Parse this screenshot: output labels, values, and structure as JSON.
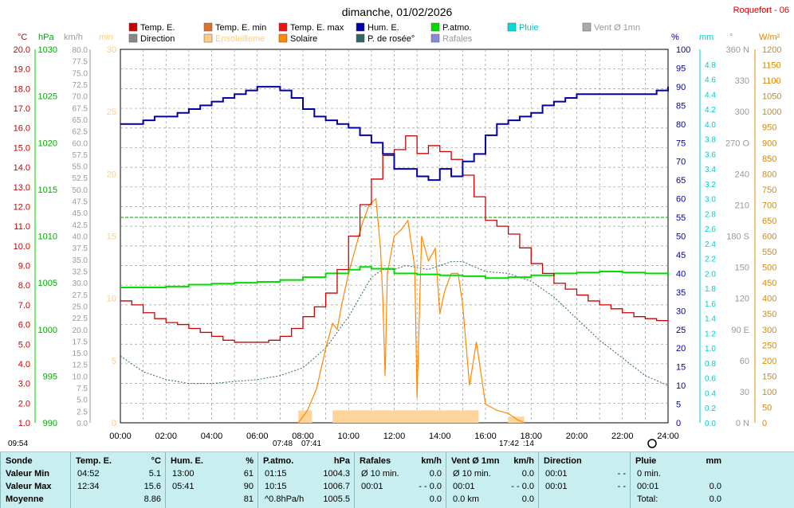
{
  "title": "dimanche, 01/02/2026",
  "station": "Roquefort - 06",
  "legend": [
    {
      "label": "Temp. E.",
      "color": "#cc0000"
    },
    {
      "label": "Temp. E. min",
      "color": "#e07030"
    },
    {
      "label": "Temp. E. max",
      "color": "#ee1111"
    },
    {
      "label": "Hum. E.",
      "color": "#0000aa"
    },
    {
      "label": "P.atmo.",
      "color": "#00dd00"
    },
    {
      "label": "Pluie",
      "color": "#00dddd"
    },
    {
      "label": "Vent Ø 1mn",
      "color": "#aaaaaa"
    },
    {
      "label": "Direction",
      "color": "#888888"
    },
    {
      "label": "Ensoleilleme",
      "color": "#ffcc88"
    },
    {
      "label": "Solaire",
      "color": "#ff8800"
    },
    {
      "label": "P. de rosée°",
      "color": "#336666"
    },
    {
      "label": "Rafales",
      "color": "#8888dd"
    }
  ],
  "axis_units": {
    "temp": "°C",
    "press": "hPa",
    "wind": "km/h",
    "min": "min",
    "hum": "%",
    "rain": "mm",
    "dir": "°",
    "solar": "W/m²"
  },
  "time_labels": [
    "00:00",
    "02:00",
    "04:00",
    "06:00",
    "08:00",
    "10:00",
    "12:00",
    "14:00",
    "16:00",
    "18:00",
    "20:00",
    "22:00",
    "24:00"
  ],
  "sun_marks": {
    "left": "09:54",
    "sunrise": "07:48",
    "sunrise2": "07:41",
    "sunset": "17:42",
    "sunset2": ":14"
  },
  "chart_data": {
    "type": "line",
    "x_unit": "hours",
    "xlim": [
      0,
      24
    ],
    "series": [
      {
        "name": "Temp. E.",
        "unit": "°C",
        "ylim": [
          1,
          20
        ],
        "color": "#cc0000",
        "x": [
          0,
          0.5,
          1,
          1.5,
          2,
          2.5,
          3,
          3.5,
          4,
          4.5,
          5,
          5.5,
          6,
          6.5,
          7,
          7.5,
          8,
          8.5,
          9,
          9.5,
          10,
          10.5,
          11,
          11.5,
          12,
          12.5,
          13,
          13.5,
          14,
          14.5,
          15,
          15.5,
          16,
          16.5,
          17,
          17.5,
          18,
          18.5,
          19,
          19.5,
          20,
          20.5,
          21,
          21.5,
          22,
          22.5,
          23,
          23.5,
          24
        ],
        "y": [
          7.2,
          7.0,
          6.6,
          6.3,
          6.1,
          6.0,
          5.8,
          5.6,
          5.4,
          5.2,
          5.1,
          5.1,
          5.1,
          5.2,
          5.4,
          5.8,
          6.4,
          6.9,
          7.6,
          8.8,
          10.5,
          12.1,
          13.4,
          14.6,
          14.9,
          15.6,
          14.7,
          15.1,
          14.8,
          14.4,
          13.6,
          12.5,
          11.3,
          11.0,
          10.6,
          9.9,
          9.1,
          8.6,
          8.1,
          7.8,
          7.5,
          7.2,
          7.0,
          6.8,
          6.6,
          6.4,
          6.3,
          6.2,
          6.1
        ]
      },
      {
        "name": "Hum. E.",
        "unit": "%",
        "ylim": [
          0,
          100
        ],
        "color": "#0000aa",
        "x": [
          0,
          0.5,
          1,
          1.5,
          2,
          2.5,
          3,
          3.5,
          4,
          4.5,
          5,
          5.5,
          6,
          6.5,
          7,
          7.5,
          8,
          8.5,
          9,
          9.5,
          10,
          10.5,
          11,
          11.5,
          12,
          12.5,
          13,
          13.5,
          14,
          14.5,
          15,
          15.5,
          16,
          16.5,
          17,
          17.5,
          18,
          18.5,
          19,
          19.5,
          20,
          20.5,
          21,
          21.5,
          22,
          22.5,
          23,
          23.5,
          24
        ],
        "y": [
          80,
          80,
          81,
          82,
          82,
          83,
          84,
          85,
          86,
          87,
          88,
          89,
          90,
          90,
          89,
          87,
          84,
          82,
          81,
          80,
          79,
          77,
          75,
          72,
          68,
          68,
          66,
          65,
          68,
          66,
          70,
          72,
          77,
          80,
          81,
          82,
          83,
          85,
          86,
          87,
          88,
          88,
          88,
          88,
          88,
          88,
          88,
          89,
          90
        ]
      },
      {
        "name": "P.atmo.",
        "unit": "hPa",
        "ylim": [
          990,
          1030
        ],
        "color": "#00dd00",
        "x": [
          0,
          1,
          2,
          3,
          4,
          5,
          6,
          7,
          8,
          9,
          10,
          10.5,
          11,
          12,
          13,
          14,
          15,
          16,
          17,
          18,
          19,
          20,
          21,
          22,
          23,
          24
        ],
        "y": [
          1004.5,
          1004.5,
          1004.6,
          1004.8,
          1004.9,
          1005.0,
          1005.1,
          1005.3,
          1005.6,
          1006.0,
          1006.4,
          1006.7,
          1006.5,
          1006.0,
          1005.9,
          1005.8,
          1005.7,
          1005.5,
          1005.6,
          1005.8,
          1006.0,
          1006.1,
          1006.2,
          1006.1,
          1006.0,
          1005.7
        ]
      },
      {
        "name": "Solaire",
        "unit": "W/m²",
        "ylim": [
          0,
          1200
        ],
        "color": "#ff8800",
        "x": [
          7.8,
          8.2,
          8.6,
          9.0,
          9.3,
          9.5,
          9.7,
          10.0,
          10.3,
          10.6,
          10.9,
          11.2,
          11.4,
          11.5,
          11.6,
          11.7,
          12.0,
          12.3,
          12.6,
          12.9,
          13.0,
          13.2,
          13.5,
          13.8,
          14.0,
          14.2,
          14.5,
          14.8,
          15.0,
          15.3,
          15.6,
          16.0,
          16.5,
          17.0,
          17.4,
          17.7
        ],
        "y": [
          0,
          40,
          110,
          240,
          320,
          300,
          380,
          480,
          560,
          640,
          700,
          720,
          560,
          400,
          150,
          480,
          600,
          620,
          650,
          500,
          80,
          600,
          520,
          560,
          350,
          420,
          480,
          480,
          380,
          120,
          260,
          60,
          40,
          30,
          10,
          0
        ]
      },
      {
        "name": "P. de rosée°",
        "unit": "°C",
        "ylim": [
          1,
          20
        ],
        "color": "#336666",
        "x": [
          0,
          1,
          2,
          3,
          4,
          5,
          6,
          7,
          8,
          9,
          10,
          10.5,
          11,
          11.5,
          12,
          12.5,
          13,
          13.5,
          14,
          14.5,
          15,
          16,
          17,
          18,
          19,
          20,
          21,
          22,
          23,
          24
        ],
        "y": [
          4.4,
          3.6,
          3.2,
          3.0,
          3.0,
          3.1,
          3.2,
          3.4,
          3.8,
          4.8,
          6.4,
          7.4,
          8.4,
          8.8,
          8.8,
          9.0,
          8.9,
          8.8,
          9.0,
          9.2,
          9.2,
          8.7,
          8.6,
          8.2,
          7.4,
          6.3,
          5.2,
          4.3,
          3.4,
          2.9
        ]
      },
      {
        "name": "Ensoleilleme",
        "unit": "min",
        "ylim": [
          0,
          30
        ],
        "color": "#ffcc88",
        "x": [
          7.8,
          8.4,
          9.3,
          15.7,
          17.0,
          17.7
        ],
        "y": [
          0,
          1,
          1,
          1,
          0.5,
          0
        ]
      }
    ]
  },
  "footer": {
    "sections": [
      {
        "title": "Sonde",
        "rows": [
          "Valeur Min",
          "Valeur Max",
          "Moyenne"
        ]
      },
      {
        "title": "Temp. E.",
        "unit": "°C",
        "rows": [
          [
            "04:52",
            "5.1"
          ],
          [
            "12:34",
            "15.6"
          ],
          [
            "",
            "8.86"
          ]
        ]
      },
      {
        "title": "Hum. E.",
        "unit": "%",
        "rows": [
          [
            "13:00",
            "61"
          ],
          [
            "05:41",
            "90"
          ],
          [
            "",
            "81"
          ]
        ]
      },
      {
        "title": "P.atmo.",
        "unit": "hPa",
        "rows": [
          [
            "01:15",
            "1004.3"
          ],
          [
            "10:15",
            "1006.7"
          ],
          [
            "^0.8hPa/h",
            "1005.5"
          ]
        ]
      },
      {
        "title": "Rafales",
        "unit": "km/h",
        "rows": [
          [
            "Ø 10 min.",
            "0.0"
          ],
          [
            "00:01",
            "- - 0.0"
          ],
          [
            "",
            "0.0"
          ]
        ]
      },
      {
        "title": "Vent Ø 1mn",
        "unit": "km/h",
        "rows": [
          [
            "Ø 10 min.",
            "0.0"
          ],
          [
            "00:01",
            "- - 0.0"
          ],
          [
            "0.0 km",
            "0.0"
          ]
        ]
      },
      {
        "title": "Direction",
        "unit": "",
        "rows": [
          [
            "00:01",
            "- -"
          ],
          [
            "00:01",
            "- -"
          ],
          [
            "",
            ""
          ]
        ]
      },
      {
        "title": "Pluie",
        "unit": "mm",
        "rows": [
          [
            "0 min.",
            ""
          ],
          [
            "00:01",
            "0.0"
          ],
          [
            "Total:",
            "0.0"
          ]
        ]
      }
    ]
  }
}
